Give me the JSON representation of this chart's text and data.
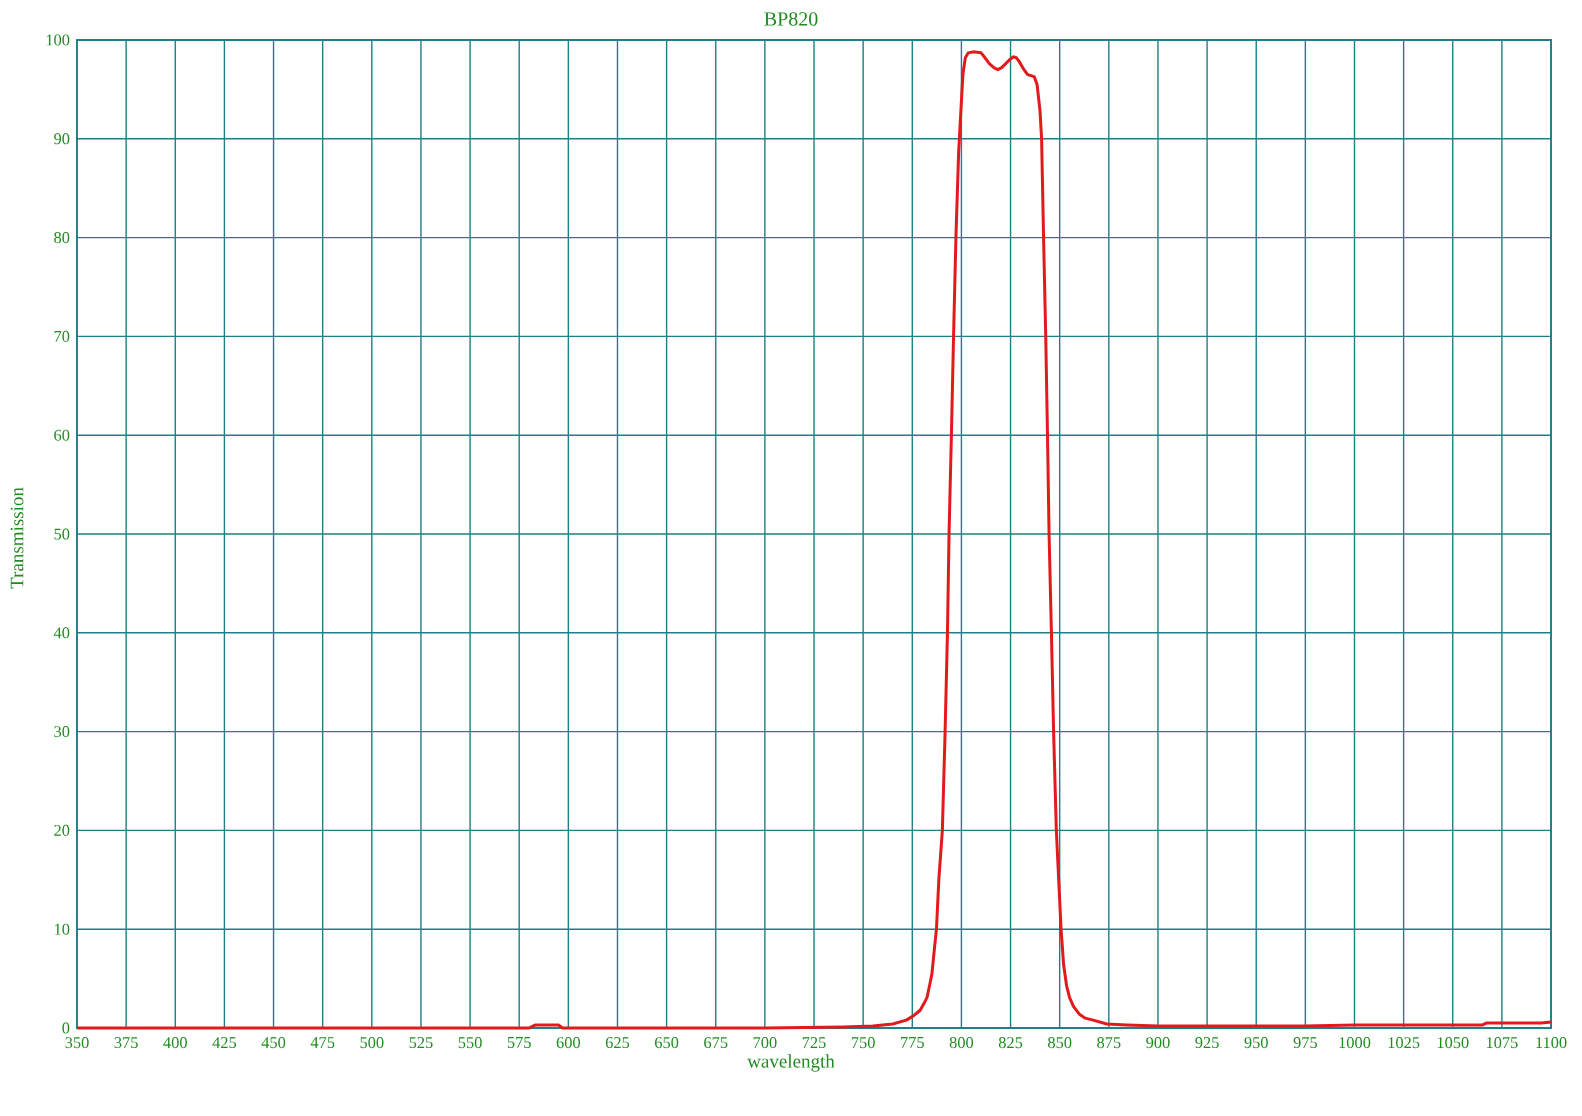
{
  "chart_data": {
    "type": "line",
    "title": "BP820",
    "xlabel": "wavelength",
    "ylabel": "Transmission",
    "x": [
      350,
      400,
      450,
      500,
      550,
      580,
      583,
      595,
      597,
      650,
      700,
      740,
      755,
      765,
      772,
      776,
      779,
      781,
      782.5,
      784,
      785,
      786.5,
      787.3,
      788.5,
      790.3,
      791.7,
      792.9,
      793.7,
      794.9,
      796,
      797.2,
      798.6,
      799.5,
      800.2,
      800.8,
      802,
      803.5,
      806,
      810,
      812,
      814.2,
      816.5,
      818.5,
      820.5,
      822.5,
      824.5,
      826.5,
      828,
      829.5,
      831.5,
      833.7,
      837,
      838.5,
      840,
      840.8,
      841.8,
      842.9,
      843.8,
      844.6,
      845.8,
      846.9,
      848.3,
      849.5,
      850.7,
      852,
      853.5,
      855,
      857,
      860,
      863,
      867,
      874,
      884,
      900,
      925,
      950,
      975,
      1000,
      1025,
      1050,
      1065,
      1067,
      1095,
      1100
    ],
    "series": [
      {
        "color": "#e31a1c",
        "values": [
          0,
          0,
          0,
          0,
          0,
          0,
          0.3,
          0.3,
          0,
          0,
          0,
          0.1,
          0.2,
          0.4,
          0.8,
          1.3,
          1.8,
          2.5,
          3.1,
          4.5,
          5.5,
          8.5,
          10,
          15,
          20,
          30,
          40,
          50,
          60,
          70,
          80,
          88.7,
          92,
          94.5,
          96.6,
          98.2,
          98.7,
          98.8,
          98.7,
          98.2,
          97.6,
          97.2,
          97.0,
          97.2,
          97.6,
          98.0,
          98.3,
          98.2,
          97.8,
          97.1,
          96.5,
          96.3,
          95.5,
          92.8,
          90,
          80,
          70,
          60,
          50,
          40,
          30,
          20,
          15,
          10,
          6.4,
          4.3,
          3.1,
          2.2,
          1.4,
          1.0,
          0.8,
          0.4,
          0.3,
          0.2,
          0.2,
          0.2,
          0.2,
          0.3,
          0.3,
          0.3,
          0.3,
          0.5,
          0.5,
          0.6
        ]
      }
    ],
    "xlim": [
      350,
      1100
    ],
    "ylim": [
      0,
      100
    ],
    "xticks": [
      350,
      375,
      400,
      425,
      450,
      475,
      500,
      525,
      550,
      575,
      600,
      625,
      650,
      675,
      700,
      725,
      750,
      775,
      800,
      825,
      850,
      875,
      900,
      925,
      950,
      975,
      1000,
      1025,
      1050,
      1075,
      1100
    ],
    "yticks": [
      0,
      10,
      20,
      30,
      40,
      50,
      60,
      70,
      80,
      90,
      100
    ],
    "grid": true,
    "line_style": "solid"
  }
}
